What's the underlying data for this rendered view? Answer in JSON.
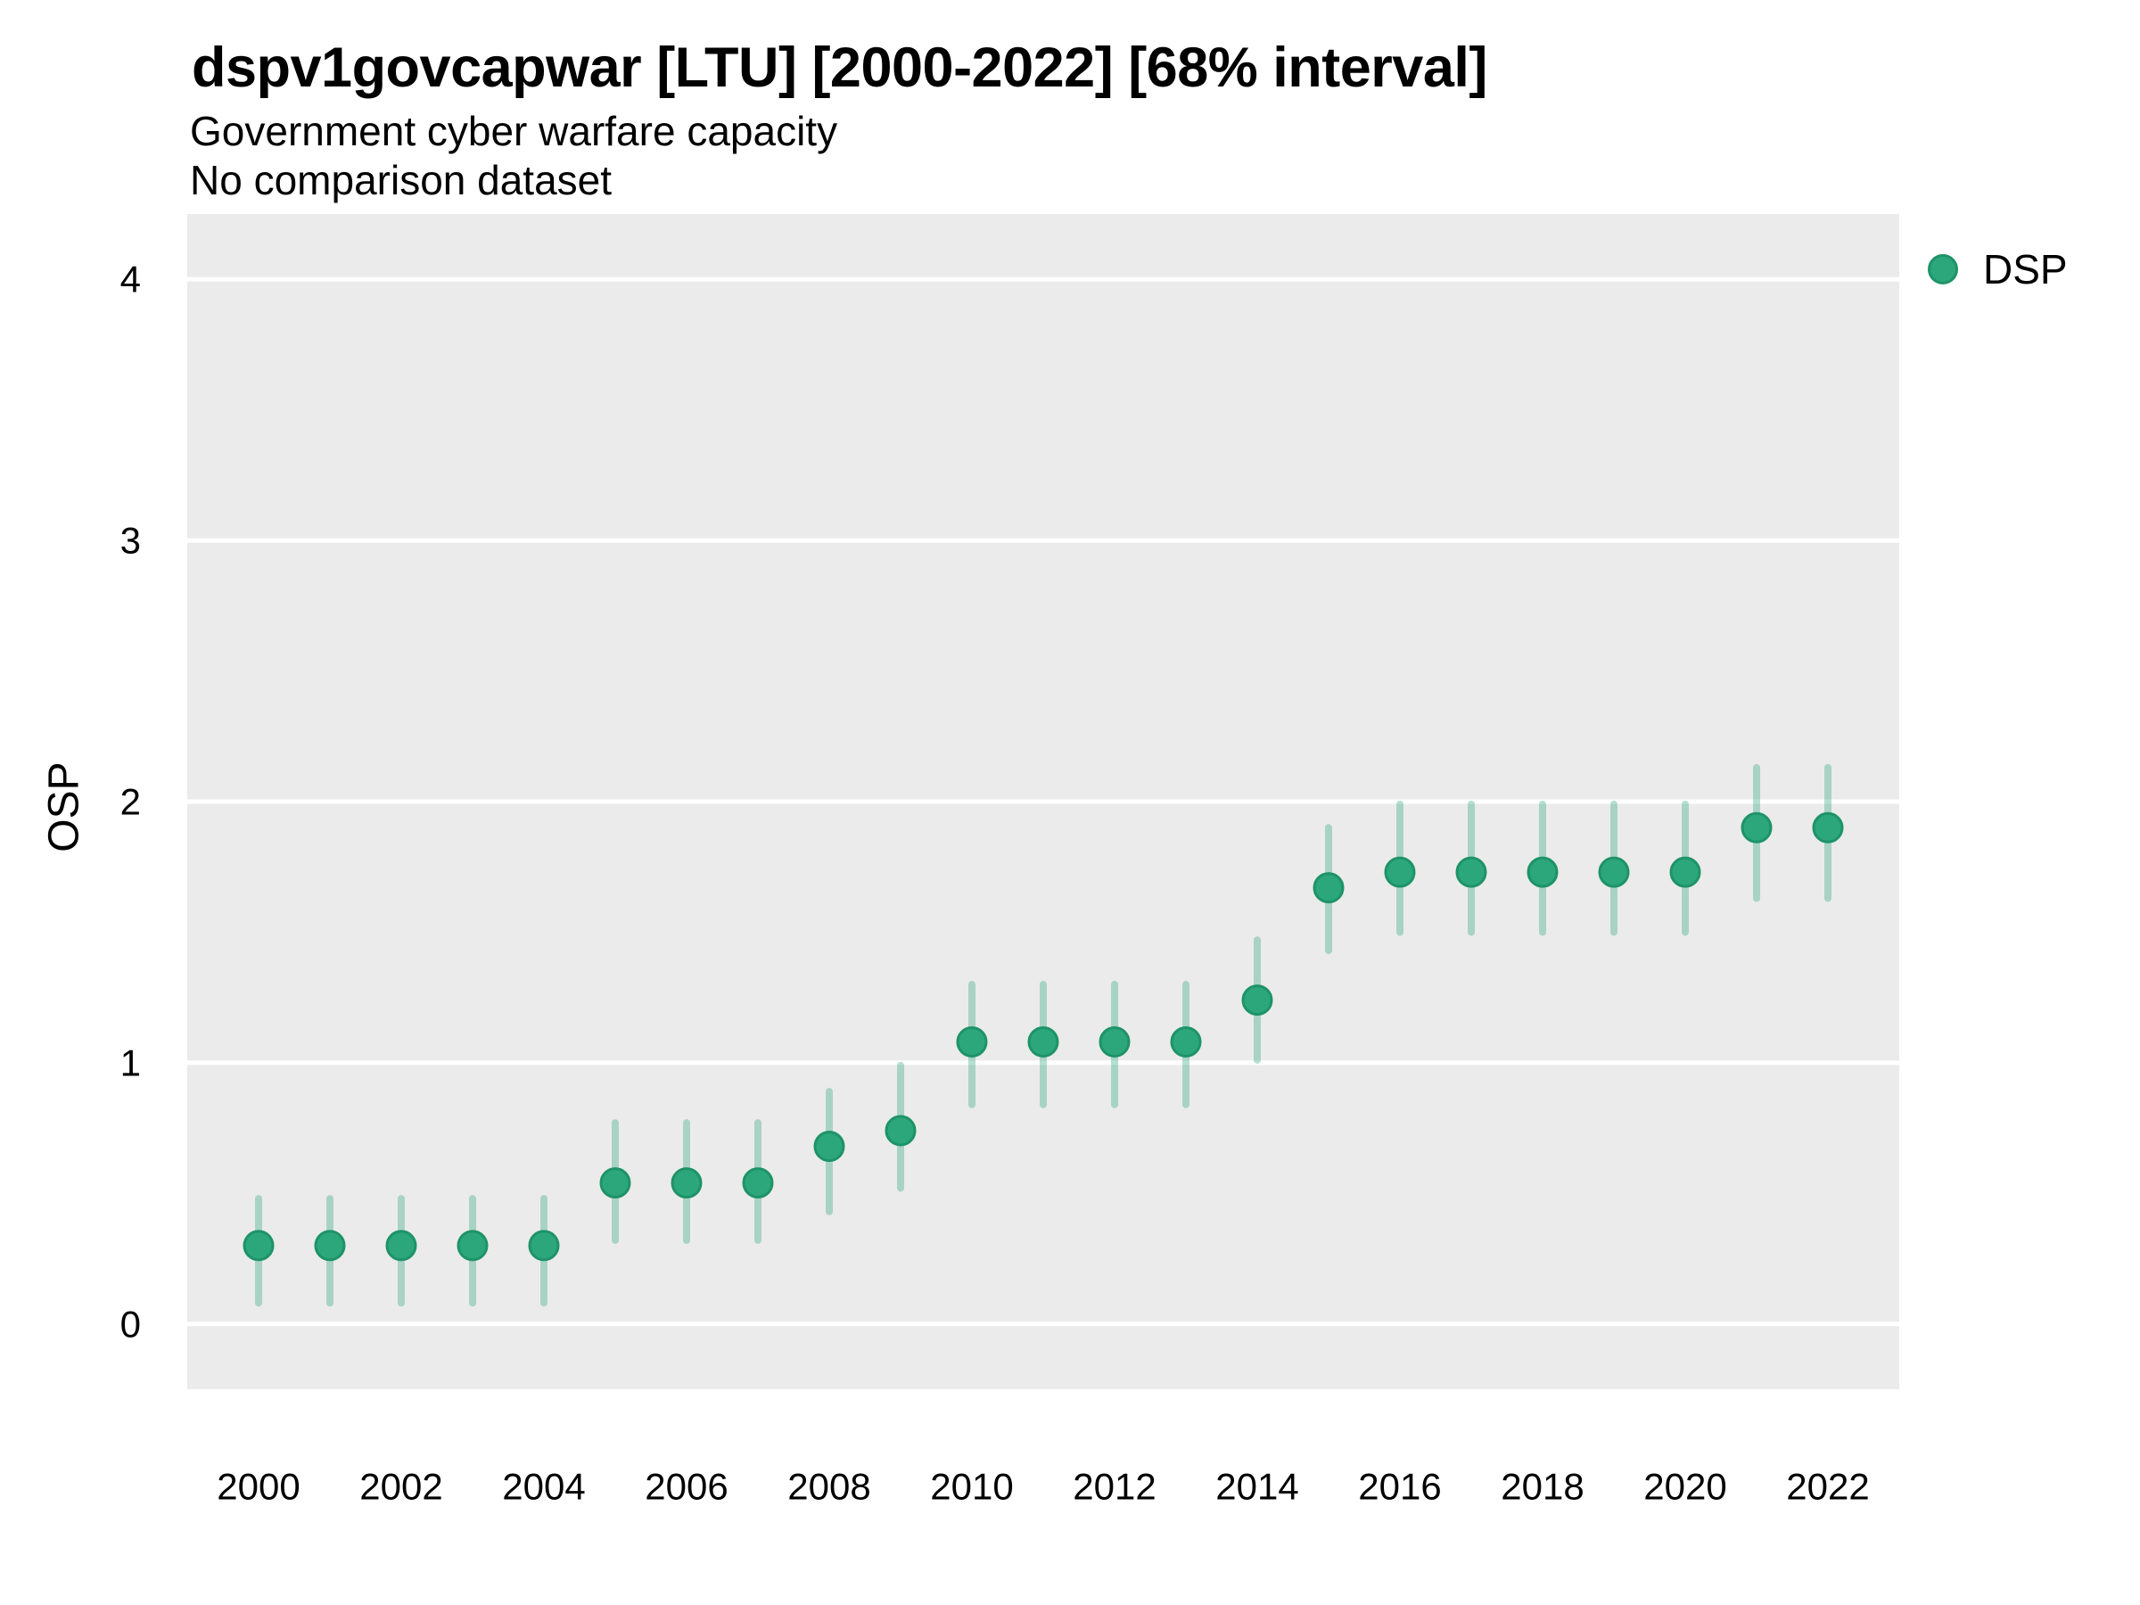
{
  "header": {
    "title": "dspv1govcapwar [LTU] [2000-2022] [68% interval]",
    "subtitle": "Government cyber warfare capacity",
    "note": "No comparison dataset"
  },
  "colors": {
    "point_fill": "#2ca77c",
    "point_stroke": "#1e9367",
    "interval_stroke": "#2ca77c",
    "panel_background": "#ebebeb",
    "gridline": "#ffffff",
    "page_background": "#ffffff",
    "text": "#000000"
  },
  "chart_data": {
    "type": "scatter",
    "title": "dspv1govcapwar [LTU] [2000-2022] [68% interval]",
    "subtitle": "Government cyber warfare capacity",
    "note": "No comparison dataset",
    "xlabel": "",
    "ylabel": "OSP",
    "interval_level": "68% interval",
    "grid": "horizontal-major-only",
    "legend_position": "right",
    "xlim": [
      1999,
      2023
    ],
    "ylim": [
      -0.25,
      4.25
    ],
    "x_ticks": [
      2000,
      2002,
      2004,
      2006,
      2008,
      2010,
      2012,
      2014,
      2016,
      2018,
      2020,
      2022
    ],
    "y_ticks": [
      0,
      1,
      2,
      3,
      4
    ],
    "series": [
      {
        "name": "DSP",
        "interval_opacity": 0.35,
        "points": [
          {
            "year": 2000,
            "value": 0.3,
            "lo": 0.08,
            "hi": 0.48
          },
          {
            "year": 2001,
            "value": 0.3,
            "lo": 0.08,
            "hi": 0.48
          },
          {
            "year": 2002,
            "value": 0.3,
            "lo": 0.08,
            "hi": 0.48
          },
          {
            "year": 2003,
            "value": 0.3,
            "lo": 0.08,
            "hi": 0.48
          },
          {
            "year": 2004,
            "value": 0.3,
            "lo": 0.08,
            "hi": 0.48
          },
          {
            "year": 2005,
            "value": 0.54,
            "lo": 0.32,
            "hi": 0.77
          },
          {
            "year": 2006,
            "value": 0.54,
            "lo": 0.32,
            "hi": 0.77
          },
          {
            "year": 2007,
            "value": 0.54,
            "lo": 0.32,
            "hi": 0.77
          },
          {
            "year": 2008,
            "value": 0.68,
            "lo": 0.43,
            "hi": 0.89
          },
          {
            "year": 2009,
            "value": 0.74,
            "lo": 0.52,
            "hi": 0.99
          },
          {
            "year": 2010,
            "value": 1.08,
            "lo": 0.84,
            "hi": 1.3
          },
          {
            "year": 2011,
            "value": 1.08,
            "lo": 0.84,
            "hi": 1.3
          },
          {
            "year": 2012,
            "value": 1.08,
            "lo": 0.84,
            "hi": 1.3
          },
          {
            "year": 2013,
            "value": 1.08,
            "lo": 0.84,
            "hi": 1.3
          },
          {
            "year": 2014,
            "value": 1.24,
            "lo": 1.01,
            "hi": 1.47
          },
          {
            "year": 2015,
            "value": 1.67,
            "lo": 1.43,
            "hi": 1.9
          },
          {
            "year": 2016,
            "value": 1.73,
            "lo": 1.5,
            "hi": 1.99
          },
          {
            "year": 2017,
            "value": 1.73,
            "lo": 1.5,
            "hi": 1.99
          },
          {
            "year": 2018,
            "value": 1.73,
            "lo": 1.5,
            "hi": 1.99
          },
          {
            "year": 2019,
            "value": 1.73,
            "lo": 1.5,
            "hi": 1.99
          },
          {
            "year": 2020,
            "value": 1.73,
            "lo": 1.5,
            "hi": 1.99
          },
          {
            "year": 2021,
            "value": 1.9,
            "lo": 1.63,
            "hi": 2.13
          },
          {
            "year": 2022,
            "value": 1.9,
            "lo": 1.63,
            "hi": 2.13
          }
        ]
      }
    ]
  }
}
